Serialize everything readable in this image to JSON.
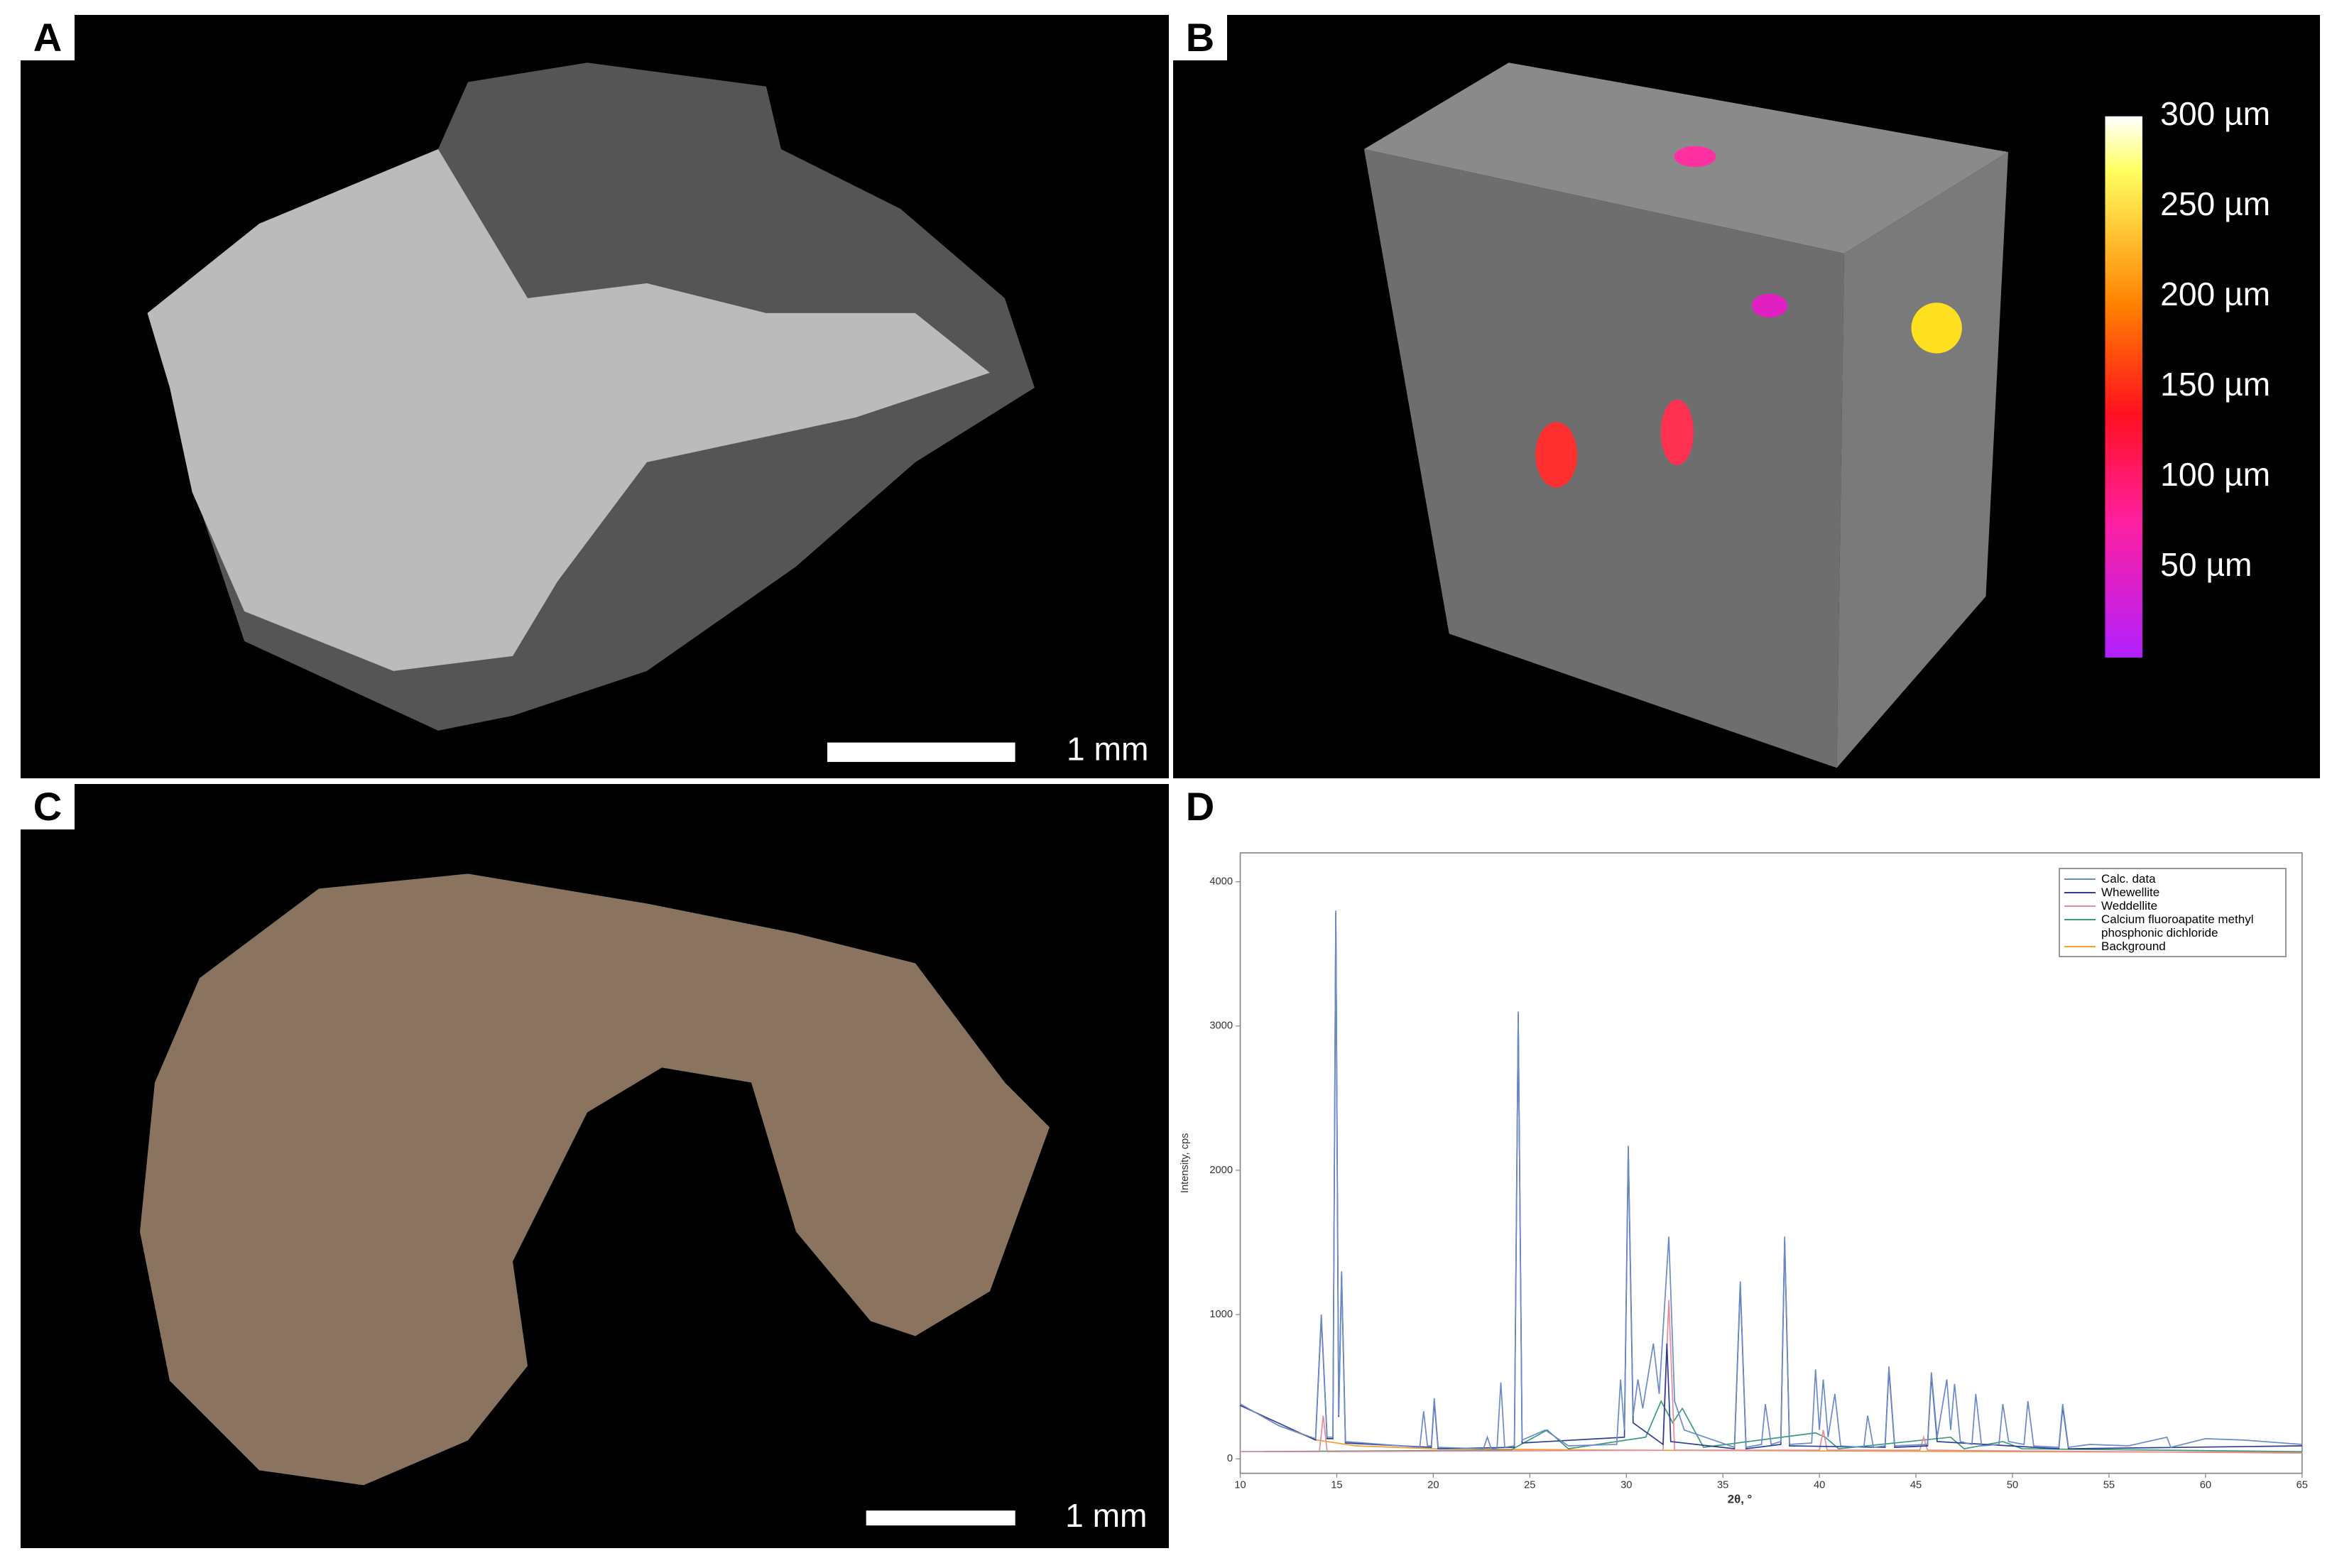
{
  "panels": [
    {
      "label": "A",
      "scale_bar": "1 mm"
    },
    {
      "label": "B",
      "colorbar_labels": [
        "300 µm",
        "250 µm",
        "200 µm",
        "150 µm",
        "100 µm",
        "50 µm"
      ]
    },
    {
      "label": "C",
      "scale_bar": "1 mm"
    },
    {
      "label": "D"
    }
  ],
  "chart_data": {
    "type": "line",
    "x_label": "2θ, °",
    "y_label": "Intensity, cps",
    "legend": "upper right",
    "xlim": [
      10,
      65
    ],
    "ylim": [
      -100,
      4200
    ],
    "xticks": [
      10,
      15,
      20,
      25,
      30,
      35,
      40,
      45,
      50,
      55,
      60,
      65
    ],
    "yticks": [
      0,
      1000,
      2000,
      3000,
      4000
    ],
    "series": [
      {
        "name": "Calc. data",
        "color": "#6a8ac8",
        "x": [
          10,
          12,
          13.9,
          14.2,
          14.5,
          14.8,
          14.95,
          15.1,
          15.25,
          15.45,
          19.3,
          19.5,
          19.7,
          19.9,
          20.05,
          20.25,
          22.6,
          22.8,
          23.0,
          23.3,
          23.5,
          23.7,
          24.2,
          24.4,
          24.6,
          25.8,
          27,
          29.5,
          29.7,
          29.9,
          30.1,
          30.35,
          30.6,
          30.85,
          31.4,
          31.7,
          32.2,
          32.5,
          33.0,
          35.6,
          35.9,
          36.2,
          37.0,
          37.2,
          37.5,
          38.0,
          38.2,
          38.45,
          39.6,
          39.8,
          40.0,
          40.2,
          40.45,
          40.8,
          41.1,
          42.3,
          42.5,
          42.8,
          43.4,
          43.6,
          43.9,
          45.6,
          45.8,
          46.1,
          46.6,
          46.8,
          47.0,
          47.3,
          47.9,
          48.1,
          48.4,
          49.3,
          49.5,
          49.8,
          50.6,
          50.8,
          51.1,
          52.4,
          52.6,
          52.9,
          54,
          56,
          58,
          58.2,
          60,
          62,
          64,
          65
        ],
        "values": [
          380,
          230,
          140,
          1000,
          150,
          150,
          3800,
          300,
          1300,
          120,
          80,
          330,
          90,
          90,
          420,
          80,
          70,
          150,
          70,
          70,
          530,
          80,
          90,
          3100,
          130,
          200,
          90,
          100,
          550,
          200,
          2170,
          300,
          550,
          350,
          800,
          450,
          1540,
          400,
          200,
          80,
          1230,
          80,
          100,
          380,
          100,
          120,
          1540,
          100,
          110,
          620,
          200,
          550,
          150,
          450,
          90,
          80,
          300,
          80,
          90,
          640,
          90,
          100,
          600,
          150,
          550,
          200,
          520,
          120,
          100,
          450,
          90,
          100,
          380,
          120,
          100,
          400,
          90,
          80,
          380,
          80,
          100,
          90,
          150,
          80,
          140,
          130,
          110,
          100
        ]
      },
      {
        "name": "Whewellite",
        "color": "#2d3f8f",
        "x": [
          10,
          13.9,
          14.2,
          14.5,
          14.8,
          14.95,
          15.1,
          15.25,
          15.45,
          19.9,
          20.05,
          20.25,
          24.2,
          24.4,
          24.6,
          29.9,
          30.1,
          30.35,
          31.9,
          32.1,
          32.3,
          35.6,
          35.9,
          36.2,
          38.0,
          38.2,
          38.45,
          43.4,
          43.6,
          43.9,
          45.6,
          45.8,
          46.1,
          52.4,
          52.6,
          52.9,
          65
        ],
        "values": [
          370,
          130,
          980,
          140,
          140,
          3780,
          290,
          1280,
          110,
          80,
          400,
          70,
          80,
          3080,
          110,
          150,
          2150,
          250,
          100,
          800,
          120,
          70,
          1210,
          70,
          100,
          1520,
          90,
          80,
          620,
          80,
          90,
          580,
          120,
          70,
          360,
          70,
          90
        ]
      },
      {
        "name": "Weddellite",
        "color": "#e88a9a",
        "x": [
          10,
          14.1,
          14.3,
          14.5,
          31.9,
          32.2,
          32.5,
          40.0,
          40.2,
          40.4,
          45.2,
          45.4,
          45.6,
          65
        ],
        "values": [
          50,
          50,
          300,
          50,
          60,
          1100,
          60,
          60,
          200,
          60,
          60,
          150,
          60,
          40
        ]
      },
      {
        "name": "Calcium fluoroapatite methyl phosphonic dichloride",
        "color": "#3a9a7a",
        "x": [
          10,
          24,
          25.9,
          27,
          31.0,
          31.8,
          32.4,
          32.9,
          34,
          39.8,
          40.3,
          41,
          46.8,
          47.5,
          49.5,
          50.5,
          65
        ],
        "values": [
          50,
          60,
          200,
          70,
          150,
          400,
          250,
          350,
          80,
          180,
          150,
          70,
          150,
          70,
          120,
          70,
          50
        ]
      },
      {
        "name": "Background",
        "color": "#f0a030",
        "x": [
          10,
          12,
          14,
          16,
          20,
          30,
          40,
          50,
          65
        ],
        "values": [
          380,
          230,
          130,
          90,
          70,
          60,
          55,
          50,
          45
        ]
      }
    ]
  }
}
